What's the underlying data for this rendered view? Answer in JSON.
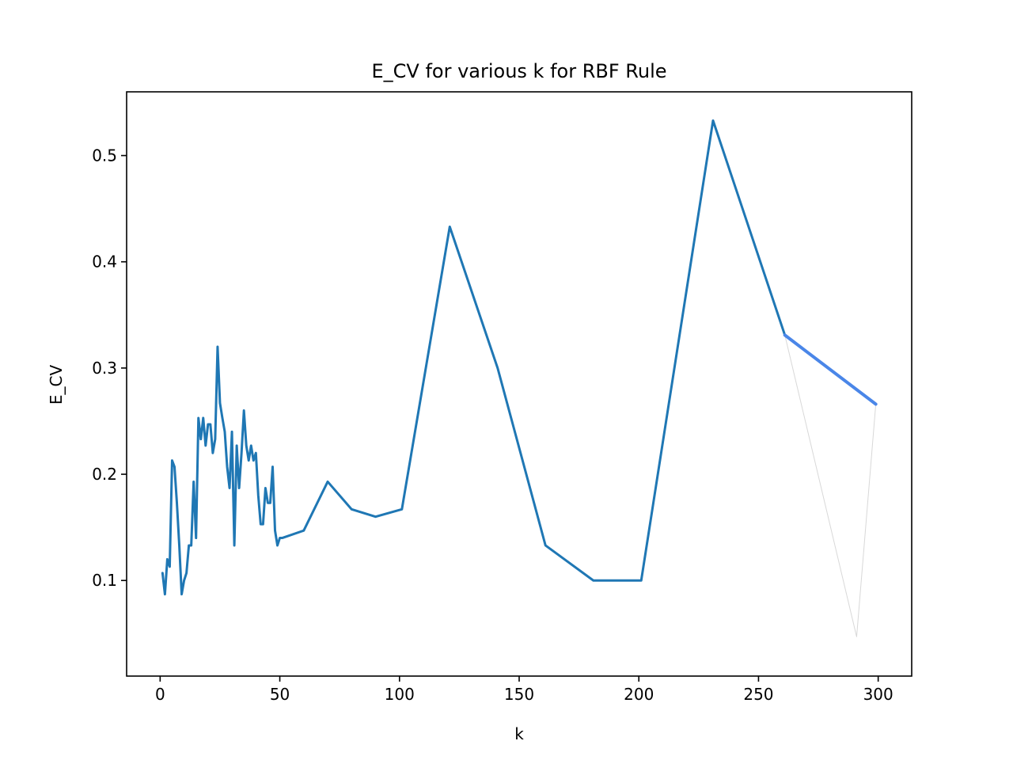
{
  "chart_data": {
    "type": "line",
    "title": "E_CV for various k for RBF Rule",
    "xlabel": "k",
    "ylabel": "E_CV",
    "xlim": [
      -14,
      314
    ],
    "ylim": [
      0.01,
      0.56
    ],
    "xticks": [
      0,
      50,
      100,
      150,
      200,
      250,
      300
    ],
    "yticks": [
      0.1,
      0.2,
      0.3,
      0.4,
      0.5
    ],
    "xtick_labels": [
      "0",
      "50",
      "100",
      "150",
      "200",
      "250",
      "300"
    ],
    "ytick_labels": [
      "0.1",
      "0.2",
      "0.3",
      "0.4",
      "0.5"
    ],
    "grid": false,
    "legend": "none",
    "series": [
      {
        "color": "#1f77b4",
        "x": [
          1,
          2,
          3,
          4,
          5,
          6,
          7,
          8,
          9,
          10,
          11,
          12,
          13,
          14,
          15,
          16,
          17,
          18,
          19,
          20,
          21,
          22,
          23,
          24,
          25,
          26,
          27,
          28,
          29,
          30,
          31,
          32,
          33,
          34,
          35,
          36,
          37,
          38,
          39,
          40,
          41,
          42,
          43,
          44,
          45,
          46,
          47,
          48,
          49,
          50,
          51,
          60,
          70,
          80,
          90,
          101,
          121,
          141,
          161,
          181,
          201,
          231,
          261
        ],
        "y": [
          0.107,
          0.087,
          0.12,
          0.113,
          0.213,
          0.207,
          0.173,
          0.133,
          0.087,
          0.1,
          0.107,
          0.133,
          0.133,
          0.193,
          0.14,
          0.253,
          0.233,
          0.253,
          0.227,
          0.247,
          0.247,
          0.22,
          0.233,
          0.32,
          0.267,
          0.253,
          0.24,
          0.207,
          0.187,
          0.24,
          0.133,
          0.227,
          0.187,
          0.22,
          0.26,
          0.227,
          0.213,
          0.227,
          0.213,
          0.22,
          0.18,
          0.153,
          0.153,
          0.187,
          0.173,
          0.173,
          0.207,
          0.147,
          0.133,
          0.14,
          0.14,
          0.147,
          0.193,
          0.167,
          0.16,
          0.167,
          0.433,
          0.3,
          0.133,
          0.1,
          0.1,
          0.533,
          0.331
        ]
      },
      {
        "color": "#4a86e8",
        "x": [
          261,
          299
        ],
        "y": [
          0.331,
          0.266
        ]
      },
      {
        "color": "#d8d8d8",
        "x": [
          261,
          291,
          299
        ],
        "y": [
          0.331,
          0.047,
          0.266
        ]
      }
    ]
  }
}
